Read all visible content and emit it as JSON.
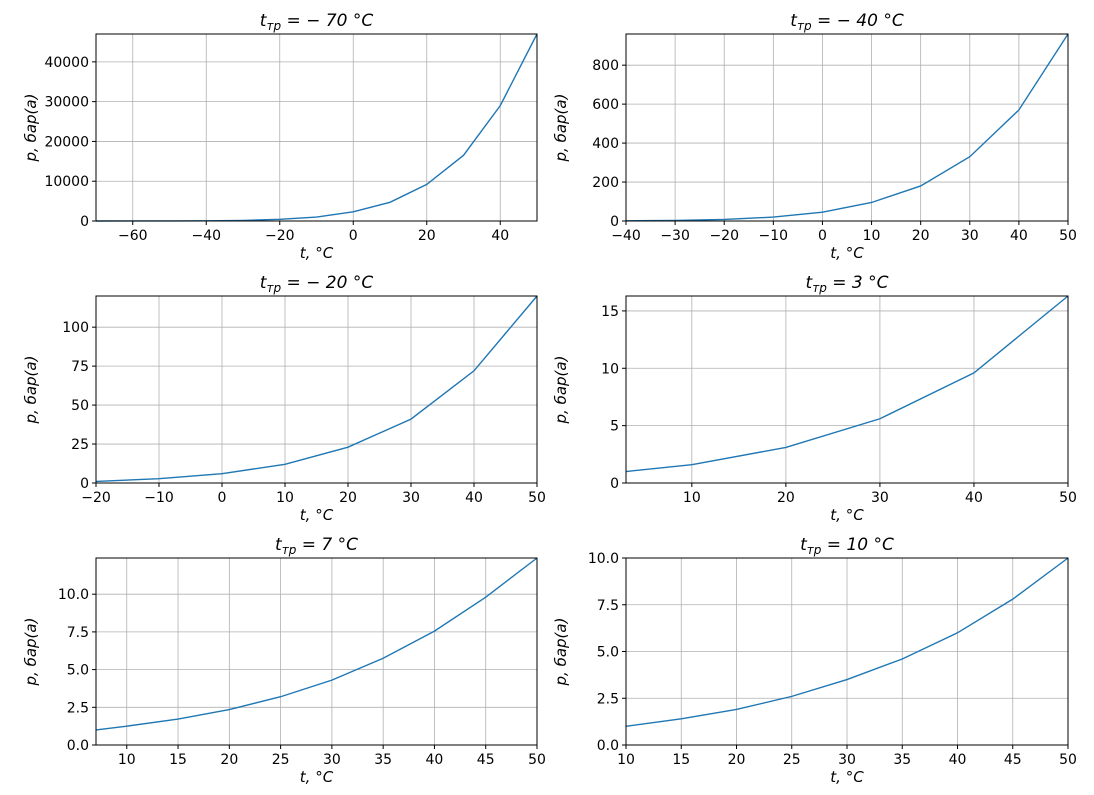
{
  "chart_data": [
    {
      "type": "line",
      "title_main": "t",
      "title_sub": "тр",
      "title_rest": " = − 70 °C",
      "xlabel": "t, °C",
      "ylabel": "p, бар(a)",
      "xlim": [
        -70,
        50
      ],
      "ylim": [
        0,
        47000
      ],
      "xticks": [
        -60,
        -40,
        -20,
        0,
        20,
        40
      ],
      "xtick_labels": [
        "−60",
        "−40",
        "−20",
        "0",
        "20",
        "40"
      ],
      "yticks": [
        0,
        10000,
        20000,
        30000,
        40000
      ],
      "ytick_labels": [
        "0",
        "10000",
        "20000",
        "30000",
        "40000"
      ],
      "grid": true,
      "series": [
        {
          "color": "#1f77b4",
          "x": [
            -70,
            -60,
            -50,
            -40,
            -30,
            -20,
            -10,
            0,
            10,
            20,
            30,
            40,
            50
          ],
          "values": [
            1,
            5,
            15,
            50,
            150,
            420,
            1000,
            2300,
            4700,
            9200,
            16500,
            29000,
            47000
          ]
        }
      ]
    },
    {
      "type": "line",
      "title_main": "t",
      "title_sub": "тр",
      "title_rest": " = − 40 °C",
      "xlabel": "t, °C",
      "ylabel": "p, бар(a)",
      "xlim": [
        -40,
        50
      ],
      "ylim": [
        0,
        960
      ],
      "xticks": [
        -40,
        -30,
        -20,
        -10,
        0,
        10,
        20,
        30,
        40,
        50
      ],
      "xtick_labels": [
        "−40",
        "−30",
        "−20",
        "−10",
        "0",
        "10",
        "20",
        "30",
        "40",
        "50"
      ],
      "yticks": [
        0,
        200,
        400,
        600,
        800
      ],
      "ytick_labels": [
        "0",
        "200",
        "400",
        "600",
        "800"
      ],
      "grid": true,
      "series": [
        {
          "color": "#1f77b4",
          "x": [
            -40,
            -30,
            -20,
            -10,
            0,
            10,
            20,
            30,
            40,
            50
          ],
          "values": [
            1,
            3,
            8,
            20,
            45,
            95,
            180,
            330,
            570,
            960
          ]
        }
      ]
    },
    {
      "type": "line",
      "title_main": "t",
      "title_sub": "тр",
      "title_rest": " = − 20 °C",
      "xlabel": "t, °C",
      "ylabel": "p, бар(a)",
      "xlim": [
        -20,
        50
      ],
      "ylim": [
        0,
        120
      ],
      "xticks": [
        -20,
        -10,
        0,
        10,
        20,
        30,
        40,
        50
      ],
      "xtick_labels": [
        "−20",
        "−10",
        "0",
        "10",
        "20",
        "30",
        "40",
        "50"
      ],
      "yticks": [
        0,
        25,
        50,
        75,
        100
      ],
      "ytick_labels": [
        "0",
        "25",
        "50",
        "75",
        "100"
      ],
      "grid": true,
      "series": [
        {
          "color": "#1f77b4",
          "x": [
            -20,
            -10,
            0,
            10,
            20,
            30,
            40,
            50
          ],
          "values": [
            1,
            2.8,
            6,
            12,
            23,
            41,
            72,
            120
          ]
        }
      ]
    },
    {
      "type": "line",
      "title_main": "t",
      "title_sub": "тр",
      "title_rest": " = 3 °C",
      "xlabel": "t, °C",
      "ylabel": "p, бар(a)",
      "xlim": [
        3,
        50
      ],
      "ylim": [
        0,
        16.3
      ],
      "xticks": [
        10,
        20,
        30,
        40,
        50
      ],
      "xtick_labels": [
        "10",
        "20",
        "30",
        "40",
        "50"
      ],
      "yticks": [
        0,
        5,
        10,
        15
      ],
      "ytick_labels": [
        "0",
        "5",
        "10",
        "15"
      ],
      "grid": true,
      "series": [
        {
          "color": "#1f77b4",
          "x": [
            3,
            10,
            20,
            30,
            40,
            50
          ],
          "values": [
            1,
            1.6,
            3.1,
            5.6,
            9.6,
            16.3
          ]
        }
      ]
    },
    {
      "type": "line",
      "title_main": "t",
      "title_sub": "тр",
      "title_rest": " = 7 °C",
      "xlabel": "t, °C",
      "ylabel": "p, бар(a)",
      "xlim": [
        7,
        50
      ],
      "ylim": [
        0,
        12.4
      ],
      "xticks": [
        10,
        15,
        20,
        25,
        30,
        35,
        40,
        45,
        50
      ],
      "xtick_labels": [
        "10",
        "15",
        "20",
        "25",
        "30",
        "35",
        "40",
        "45",
        "50"
      ],
      "yticks": [
        0,
        2.5,
        5,
        7.5,
        10
      ],
      "ytick_labels": [
        "0.0",
        "2.5",
        "5.0",
        "7.5",
        "10.0"
      ],
      "grid": true,
      "series": [
        {
          "color": "#1f77b4",
          "x": [
            7,
            10,
            15,
            20,
            25,
            30,
            35,
            40,
            45,
            50
          ],
          "values": [
            1,
            1.25,
            1.72,
            2.35,
            3.2,
            4.3,
            5.75,
            7.55,
            9.8,
            12.4
          ]
        }
      ]
    },
    {
      "type": "line",
      "title_main": "t",
      "title_sub": "тр",
      "title_rest": " = 10 °C",
      "xlabel": "t, °C",
      "ylabel": "p, бар(a)",
      "xlim": [
        10,
        50
      ],
      "ylim": [
        0,
        10
      ],
      "xticks": [
        10,
        15,
        20,
        25,
        30,
        35,
        40,
        45,
        50
      ],
      "xtick_labels": [
        "10",
        "15",
        "20",
        "25",
        "30",
        "35",
        "40",
        "45",
        "50"
      ],
      "yticks": [
        0,
        2.5,
        5,
        7.5,
        10
      ],
      "ytick_labels": [
        "0.0",
        "2.5",
        "5.0",
        "7.5",
        "10.0"
      ],
      "grid": true,
      "series": [
        {
          "color": "#1f77b4",
          "x": [
            10,
            15,
            20,
            25,
            30,
            35,
            40,
            45,
            50
          ],
          "values": [
            1,
            1.4,
            1.9,
            2.6,
            3.5,
            4.6,
            6.0,
            7.8,
            10
          ]
        }
      ]
    }
  ]
}
